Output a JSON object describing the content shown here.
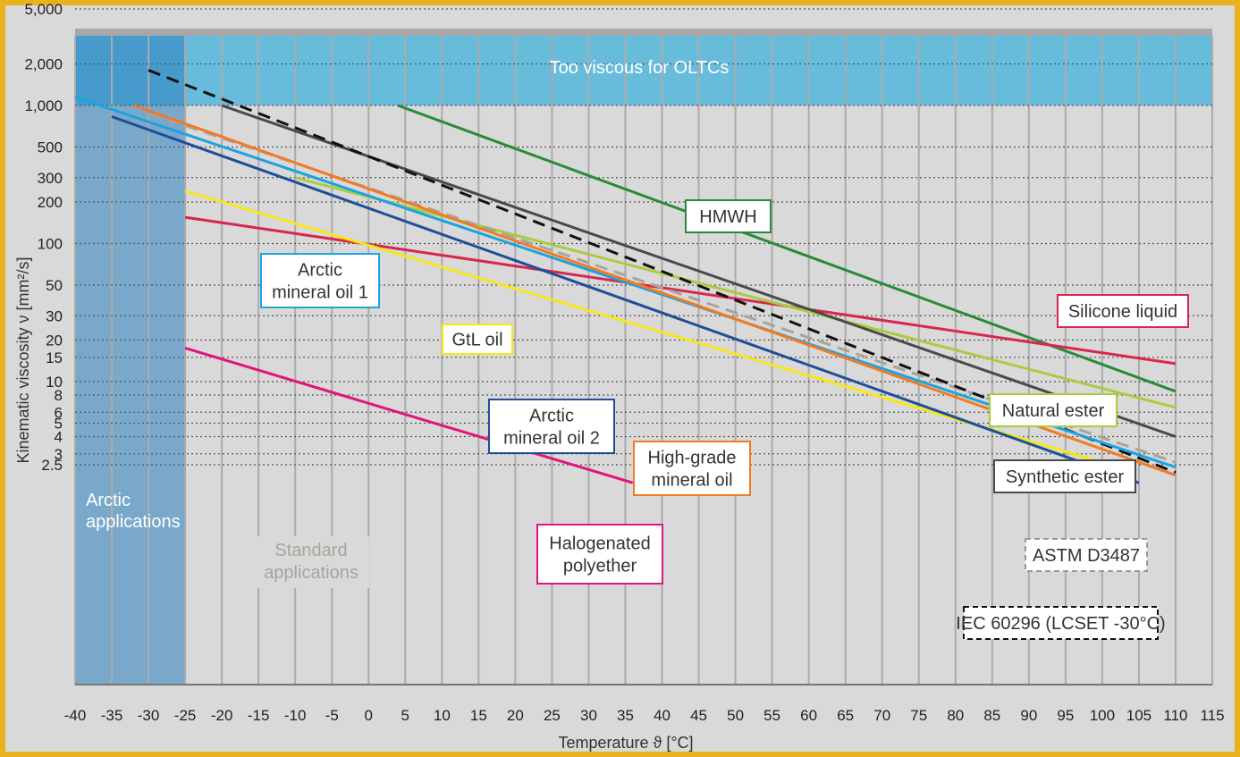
{
  "chart_data": {
    "type": "line",
    "xlabel": "Temperature ϑ [°C]",
    "ylabel": "Kinematic viscosity ν [mm²/s]",
    "y_scale": "log",
    "xlim": [
      -40,
      115
    ],
    "ylim": [
      1.8,
      8000
    ],
    "x_ticks": [
      -40,
      -35,
      -30,
      -25,
      -20,
      -15,
      -10,
      -5,
      0,
      5,
      10,
      15,
      20,
      25,
      30,
      35,
      40,
      45,
      50,
      55,
      60,
      65,
      70,
      75,
      80,
      85,
      90,
      95,
      100,
      105,
      110,
      115
    ],
    "y_ticks": [
      {
        "v": 5000,
        "label": "5,000"
      },
      {
        "v": 2000,
        "label": "2,000"
      },
      {
        "v": 1000,
        "label": "1,000"
      },
      {
        "v": 500,
        "label": "500"
      },
      {
        "v": 300,
        "label": "300"
      },
      {
        "v": 200,
        "label": "200"
      },
      {
        "v": 100,
        "label": "100"
      },
      {
        "v": 50,
        "label": "50"
      },
      {
        "v": 30,
        "label": "30"
      },
      {
        "v": 20,
        "label": "20"
      },
      {
        "v": 15,
        "label": "15"
      },
      {
        "v": 10,
        "label": "10"
      },
      {
        "v": 8,
        "label": "8"
      },
      {
        "v": 6,
        "label": "6"
      },
      {
        "v": 5,
        "label": "5"
      },
      {
        "v": 4,
        "label": "4"
      },
      {
        "v": 3,
        "label": "3"
      },
      {
        "v": 2.5,
        "label": "2.5"
      }
    ],
    "grid": true,
    "regions": [
      {
        "label": "Too viscous for OLTCs",
        "x": [
          -40,
          115
        ],
        "y": [
          1000,
          8000
        ],
        "color": "#5ab8dc"
      },
      {
        "label_lines": [
          "Arctic",
          "applications"
        ],
        "x": [
          -40,
          -25
        ],
        "y": [
          1.8,
          8000
        ],
        "color": "#2b7fc0"
      },
      {
        "label_lines": [
          "Standard",
          "applications"
        ],
        "color": "#aaaaaa"
      }
    ],
    "series": [
      {
        "name": "HMWH",
        "color": "#2a8a3a",
        "dash": false,
        "x": [
          4,
          110
        ],
        "y": [
          1000,
          8.5
        ]
      },
      {
        "name": "Silicone liquid",
        "color": "#d8264f",
        "dash": false,
        "x": [
          -25,
          110
        ],
        "y": [
          155,
          13.5
        ]
      },
      {
        "name": "Natural ester",
        "color": "#a8cc3e",
        "dash": false,
        "x": [
          -10,
          110
        ],
        "y": [
          300,
          6.5
        ]
      },
      {
        "name": "Synthetic ester",
        "color": "#4a4a4a",
        "dash": false,
        "x": [
          -20,
          110
        ],
        "y": [
          1000,
          4.0
        ]
      },
      {
        "name": "ASTM D3487",
        "color": "#a8a39b",
        "dash": true,
        "x": [
          -30,
          110
        ],
        "y": [
          880,
          2.6
        ]
      },
      {
        "name": "IEC 60296 (LCSET -30°C)",
        "color": "#111111",
        "dash": true,
        "x": [
          -30,
          110
        ],
        "y": [
          1800,
          2.2
        ]
      },
      {
        "name": "Arctic mineral oil 1",
        "color": "#1ba3e0",
        "dash": false,
        "x": [
          -40,
          110
        ],
        "y": [
          1150,
          2.4
        ]
      },
      {
        "name": "GtL oil",
        "color": "#f5e81a",
        "dash": false,
        "x": [
          -25,
          100
        ],
        "y": [
          240,
          2.6
        ]
      },
      {
        "name": "High-grade mineral oil",
        "color": "#f07b24",
        "dash": false,
        "x": [
          -32,
          110
        ],
        "y": [
          1000,
          2.1
        ]
      },
      {
        "name": "Arctic mineral oil 2",
        "color": "#1e4f98",
        "dash": false,
        "x": [
          -35,
          105
        ],
        "y": [
          830,
          1.85
        ]
      },
      {
        "name": "Halogenated polyether",
        "color": "#e0157f",
        "dash": false,
        "x": [
          -25,
          36
        ],
        "y": [
          17.5,
          1.85
        ]
      }
    ],
    "legend_boxes": [
      {
        "lines": [
          "HMWH"
        ],
        "color": "#2a8a3a"
      },
      {
        "lines": [
          "Silicone liquid"
        ],
        "color": "#d8264f"
      },
      {
        "lines": [
          "Natural ester"
        ],
        "color": "#a8cc3e"
      },
      {
        "lines": [
          "Synthetic ester"
        ],
        "color": "#4a4a4a"
      },
      {
        "lines": [
          "ASTM D3487"
        ],
        "color": "#999999"
      },
      {
        "lines": [
          "IEC 60296 (LCSET -30°C)"
        ],
        "color": "#111111"
      },
      {
        "lines": [
          "Arctic",
          "mineral oil 1"
        ],
        "color": "#1ba3e0"
      },
      {
        "lines": [
          "GtL oil"
        ],
        "color": "#f5e81a"
      },
      {
        "lines": [
          "Arctic",
          "mineral oil 2"
        ],
        "color": "#1e4f98"
      },
      {
        "lines": [
          "High-grade",
          "mineral oil"
        ],
        "color": "#f07b24"
      },
      {
        "lines": [
          "Halogenated",
          "polyether"
        ],
        "color": "#e0157f"
      }
    ]
  }
}
